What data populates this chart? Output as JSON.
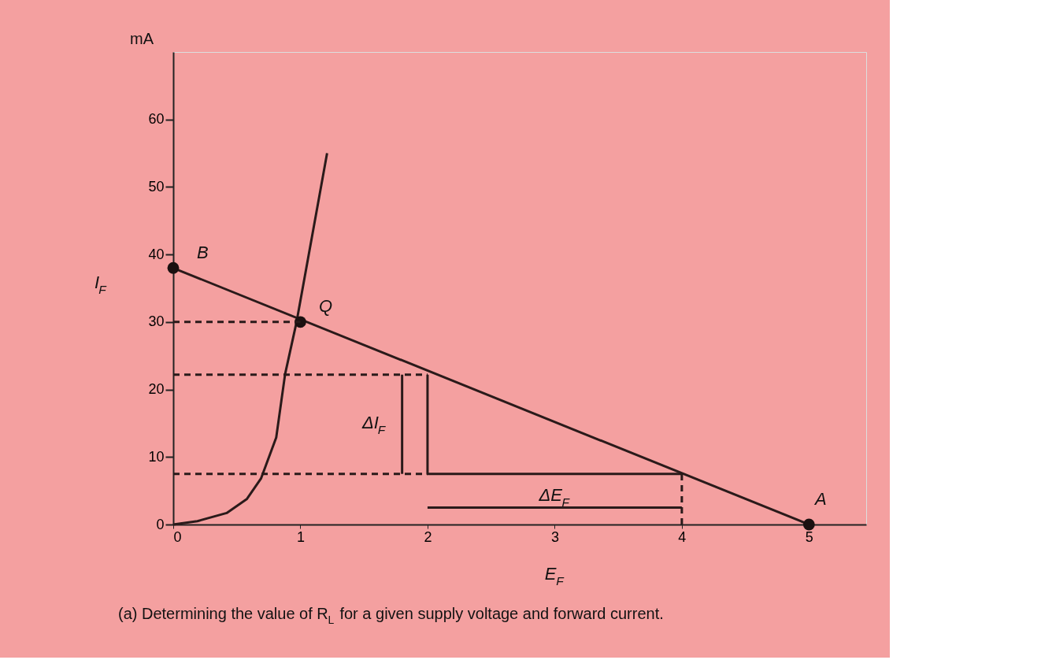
{
  "chart_data": {
    "type": "line",
    "xlabel": "E$_{F}$",
    "ylabel": "I$_{F}$",
    "xlim": [
      0,
      5.45
    ],
    "ylim": [
      0,
      70
    ],
    "xticks": [
      0,
      1,
      2,
      3,
      4,
      5
    ],
    "yticks": [
      0,
      10,
      20,
      30,
      40,
      50,
      60
    ],
    "grid": false,
    "series": [
      {
        "color": "#2a1a1a",
        "line_style": "solid",
        "x": [
          0,
          0.19,
          0.42,
          0.58,
          0.69,
          0.81,
          0.88,
          0.97,
          1.21
        ],
        "values": [
          0,
          0.5,
          1.7,
          3.8,
          6.8,
          12.9,
          22.3,
          30,
          55
        ]
      },
      {
        "color": "#2a1a1a",
        "line_style": "solid",
        "x": [
          0,
          5
        ],
        "values": [
          38,
          0
        ]
      },
      {
        "type": "scatter",
        "color": "#1a1010",
        "marker": "circle",
        "x": [
          0,
          1,
          5
        ],
        "values": [
          38,
          30,
          0
        ]
      },
      {
        "color": "#2a1a1a",
        "line_style": "dashed",
        "x": [
          0,
          1
        ],
        "values": [
          30,
          30
        ]
      },
      {
        "color": "#2a1a1a",
        "line_style": "dashed",
        "x": [
          0,
          2
        ],
        "values": [
          22.2,
          22.2
        ]
      },
      {
        "color": "#2a1a1a",
        "line_style": "dashed",
        "x": [
          0,
          2
        ],
        "values": [
          7.5,
          7.5
        ]
      },
      {
        "color": "#2a1a1a",
        "line_style": "solid",
        "x": [
          2,
          2,
          4
        ],
        "values": [
          22.2,
          7.5,
          7.5
        ]
      },
      {
        "color": "#2a1a1a",
        "line_style": "dashed",
        "x": [
          4,
          4
        ],
        "values": [
          0,
          7.5
        ]
      },
      {
        "color": "#2a1a1a",
        "line_style": "solid",
        "x": [
          1.8,
          1.8
        ],
        "values": [
          7.5,
          22.2
        ]
      },
      {
        "color": "#2a1a1a",
        "line_style": "solid",
        "x": [
          2,
          4
        ],
        "values": [
          2.5,
          2.5
        ]
      }
    ],
    "annotations": [
      "mA",
      "B",
      "Q",
      "A",
      "ΔI$_{F}$",
      "ΔE$_{F}$",
      "(a) Determining the value of R$_{L}$ for a given supply voltage and forward current."
    ]
  }
}
